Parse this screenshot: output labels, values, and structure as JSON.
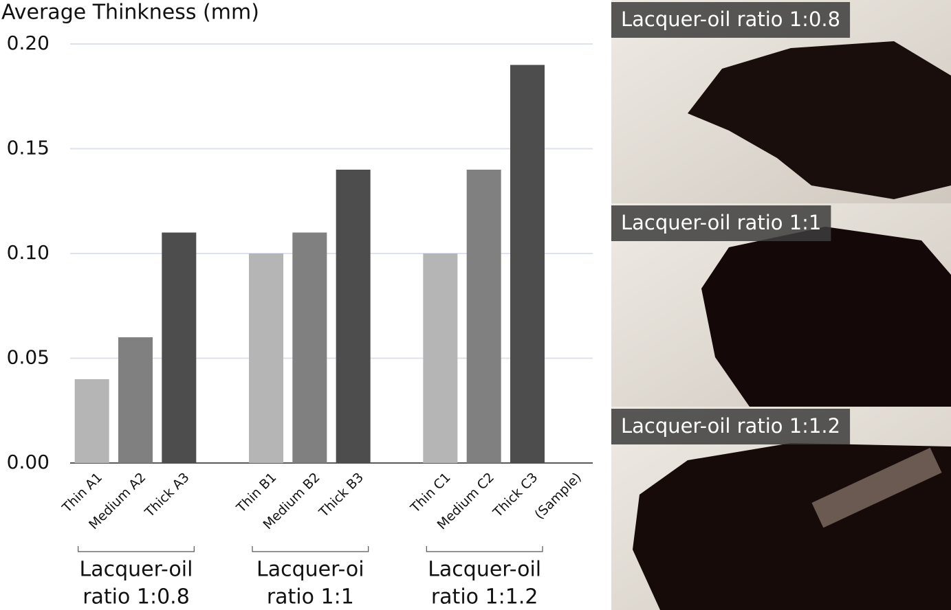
{
  "chart_data": {
    "type": "bar",
    "title": "Average Thinkness (mm)",
    "categories": [
      "Thin A1",
      "Medium A2",
      "Thick A3",
      null,
      "Thin B1",
      "Medium B2",
      "Thick B3",
      null,
      "Thin C1",
      "Medium C2",
      "Thick C3",
      "(Sample)"
    ],
    "values": [
      0.04,
      0.06,
      0.11,
      null,
      0.1,
      0.11,
      0.14,
      null,
      0.1,
      0.14,
      0.19,
      null
    ],
    "colors": [
      "#b5b5b5",
      "#808080",
      "#4d4d4d",
      null,
      "#b5b5b5",
      "#808080",
      "#4d4d4d",
      null,
      "#b5b5b5",
      "#808080",
      "#4d4d4d",
      null
    ],
    "ylim": [
      0,
      0.2
    ],
    "yticks": [
      {
        "value": 0,
        "label": "0.00"
      },
      {
        "value": 0.05,
        "label": "0.05"
      },
      {
        "value": 0.1,
        "label": "0.10"
      },
      {
        "value": 0.15,
        "label": "0.15"
      },
      {
        "value": 0.2,
        "label": "0.20"
      }
    ],
    "grid": true,
    "groups": [
      {
        "lines": [
          "Lacquer-oil",
          "ratio 1:0.8"
        ]
      },
      {
        "lines": [
          "Lacquer-oi",
          "ratio 1:1"
        ]
      },
      {
        "lines": [
          "Lacquer-oil",
          "ratio 1:1.2"
        ]
      }
    ]
  },
  "photos": [
    {
      "caption": "Lacquer-oil ratio 1:0.8"
    },
    {
      "caption": "Lacquer-oil ratio 1:1"
    },
    {
      "caption": "Lacquer-oil ratio 1:1.2"
    }
  ]
}
